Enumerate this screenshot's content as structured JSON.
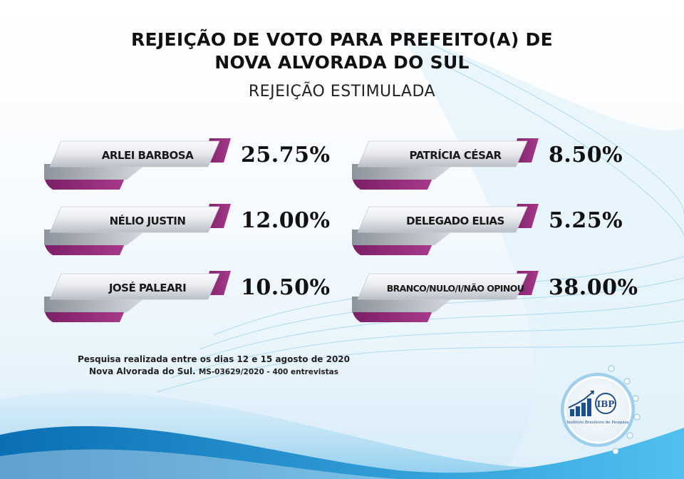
{
  "header": {
    "title_line1": "REJEIÇÃO DE VOTO PARA PREFEITO(A) DE",
    "title_line2": "NOVA ALVORADA DO SUL",
    "subtitle": "REJEIÇÃO ESTIMULADA"
  },
  "candidates": [
    {
      "name": "ARLEI BARBOSA",
      "value": "25.75%",
      "percent": 25.75
    },
    {
      "name": "NÉLIO JUSTIN",
      "value": "12.00%",
      "percent": 12.0
    },
    {
      "name": "JOSÉ PALEARI",
      "value": "10.50%",
      "percent": 10.5
    },
    {
      "name": "PATRÍCIA CÉSAR",
      "value": "8.50%",
      "percent": 8.5
    },
    {
      "name": "DELEGADO ELIAS",
      "value": "5.25%",
      "percent": 5.25
    },
    {
      "name": "BRANCO/NULO/I/NÃO OPINOU",
      "value": "38.00%",
      "percent": 38.0
    }
  ],
  "footnote": {
    "line1": "Pesquisa realizada entre os dias 12 e 15 agosto de 2020",
    "line2_place": "Nova Alvorada do Sul.",
    "line2_code": "MS-03629/2020 - 400 entrevistas"
  },
  "logo": {
    "abbr": "IBP",
    "name": "Instituto Brasileiro de Pesquisa"
  },
  "colors": {
    "accent_magenta": "#8e2a76",
    "card_silver": "#e4e7ec",
    "wave_blue": "#2a9fd8",
    "text_dark": "#111111"
  }
}
